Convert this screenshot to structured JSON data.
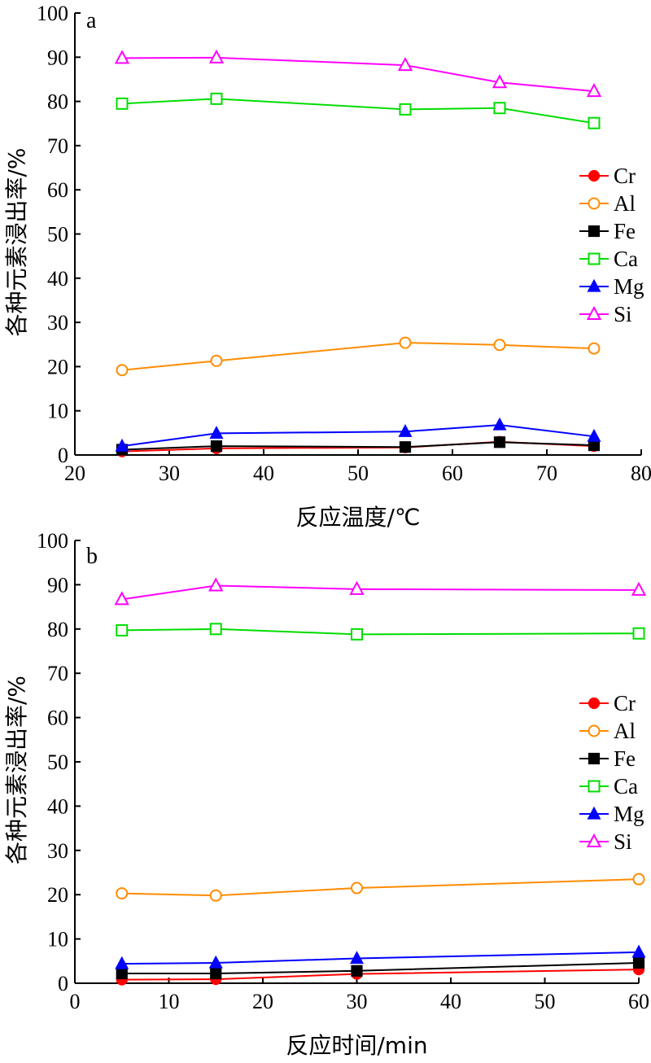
{
  "chart_data": [
    {
      "type": "line",
      "panel_label": "a",
      "xlabel": "反应温度/℃",
      "ylabel": "各种元素浸出率/%",
      "xlim": [
        20,
        80
      ],
      "ylim": [
        0,
        100
      ],
      "xticks": [
        20,
        30,
        40,
        50,
        60,
        70,
        80
      ],
      "yticks": [
        0,
        10,
        20,
        30,
        40,
        50,
        60,
        70,
        80,
        90,
        100
      ],
      "x": [
        25,
        35,
        55,
        65,
        75
      ],
      "legend_position": "right",
      "series": [
        {
          "name": "Cr",
          "color": "#ff0000",
          "marker": "circle-filled",
          "values": [
            0.8,
            1.5,
            1.7,
            3.0,
            2.0
          ]
        },
        {
          "name": "Al",
          "color": "#ff8c00",
          "marker": "circle-open",
          "values": [
            19.2,
            21.3,
            25.4,
            24.9,
            24.1
          ]
        },
        {
          "name": "Fe",
          "color": "#000000",
          "marker": "square-filled",
          "values": [
            1.2,
            2.0,
            1.8,
            2.9,
            2.2
          ]
        },
        {
          "name": "Ca",
          "color": "#00dd00",
          "marker": "square-open",
          "values": [
            79.5,
            80.6,
            78.2,
            78.5,
            75.1
          ]
        },
        {
          "name": "Mg",
          "color": "#0000ff",
          "marker": "triangle-filled",
          "values": [
            2.0,
            4.9,
            5.3,
            6.8,
            4.2
          ]
        },
        {
          "name": "Si",
          "color": "#ff00ff",
          "marker": "triangle-open",
          "values": [
            89.8,
            89.9,
            88.2,
            84.3,
            82.3
          ]
        }
      ]
    },
    {
      "type": "line",
      "panel_label": "b",
      "xlabel": "反应时间/min",
      "ylabel": "各种元素浸出率/%",
      "xlim": [
        0,
        60
      ],
      "ylim": [
        0,
        100
      ],
      "xticks": [
        0,
        10,
        20,
        30,
        40,
        50,
        60
      ],
      "yticks": [
        0,
        10,
        20,
        30,
        40,
        50,
        60,
        70,
        80,
        90,
        100
      ],
      "x": [
        5,
        15,
        30,
        60
      ],
      "legend_position": "right",
      "series": [
        {
          "name": "Cr",
          "color": "#ff0000",
          "marker": "circle-filled",
          "values": [
            0.8,
            0.9,
            2.1,
            3.1
          ]
        },
        {
          "name": "Al",
          "color": "#ff8c00",
          "marker": "circle-open",
          "values": [
            20.3,
            19.8,
            21.5,
            23.5
          ]
        },
        {
          "name": "Fe",
          "color": "#000000",
          "marker": "square-filled",
          "values": [
            2.2,
            2.2,
            2.8,
            4.6
          ]
        },
        {
          "name": "Ca",
          "color": "#00dd00",
          "marker": "square-open",
          "values": [
            79.7,
            80.0,
            78.8,
            79.0
          ]
        },
        {
          "name": "Mg",
          "color": "#0000ff",
          "marker": "triangle-filled",
          "values": [
            4.4,
            4.6,
            5.6,
            7.0
          ]
        },
        {
          "name": "Si",
          "color": "#ff00ff",
          "marker": "triangle-open",
          "values": [
            86.7,
            89.8,
            89.0,
            88.8
          ]
        }
      ]
    }
  ]
}
